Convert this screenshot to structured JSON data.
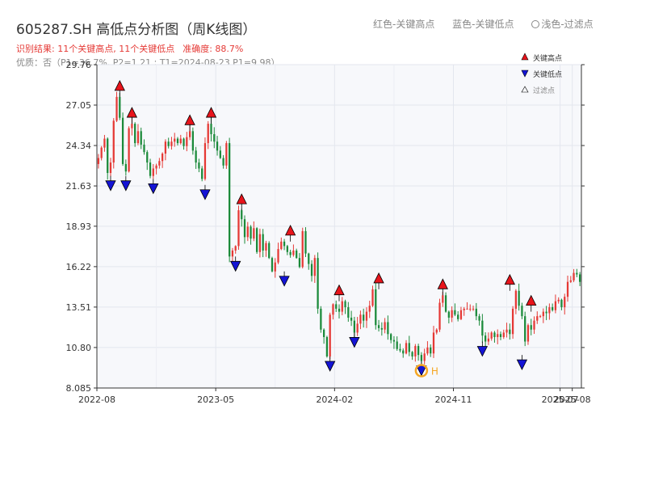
{
  "header": {
    "title": "605287.SH 高低点分析图（周K线图）",
    "legend_high": "红色-关键高点",
    "legend_low": "蓝色-关键低点",
    "legend_filtered": "浅色-过滤点",
    "summary": "识别结果: 11个关键高点, 11个关键低点",
    "accuracy": "准确度: 88.7%",
    "detail": "优质：否（P1=36.7%, P2=1.21 ; T1=2024-08-23 P1=9.98）"
  },
  "colors": {
    "up": "#e53935",
    "down": "#1b8a3a",
    "high_marker": "#e8141b",
    "low_marker": "#1414d6",
    "special": "#f5a623",
    "plot_bg": "#f7f8fb"
  },
  "chart_data": {
    "type": "candlestick",
    "x_ticks": [
      "2022-08",
      "2023-05",
      "2024-02",
      "2024-11",
      "2025-07",
      "2025-08"
    ],
    "x_tick_index": [
      0,
      39,
      78,
      117,
      152,
      156
    ],
    "y_ticks": [
      "8.085",
      "10.80",
      "13.51",
      "16.22",
      "18.93",
      "21.63",
      "24.34",
      "27.05",
      "29.76"
    ],
    "ylim": [
      8.085,
      29.76
    ],
    "legend": [
      "关键高点",
      "关键低点",
      "过滤点"
    ],
    "special_label": "H",
    "close": [
      23.5,
      24.2,
      24.8,
      22.5,
      23.2,
      26.0,
      27.6,
      26.2,
      23.1,
      22.6,
      25.5,
      25.8,
      24.5,
      25.3,
      24.4,
      23.9,
      23.2,
      22.3,
      22.8,
      23.0,
      23.3,
      23.8,
      24.6,
      24.3,
      24.6,
      24.8,
      24.5,
      24.8,
      24.3,
      24.9,
      25.3,
      24.0,
      23.2,
      22.8,
      22.1,
      24.5,
      25.8,
      25.1,
      24.6,
      24.0,
      23.5,
      23.0,
      24.5,
      16.9,
      17.3,
      17.6,
      20.0,
      19.4,
      18.2,
      18.9,
      18.1,
      18.8,
      17.2,
      18.4,
      17.3,
      17.8,
      16.8,
      15.9,
      16.5,
      17.4,
      17.9,
      17.6,
      17.2,
      17.0,
      17.3,
      16.8,
      16.2,
      18.6,
      17.1,
      16.4,
      15.6,
      16.8,
      13.4,
      12.0,
      11.5,
      10.2,
      13.0,
      13.7,
      13.4,
      13.2,
      13.9,
      13.5,
      12.8,
      12.6,
      11.8,
      12.4,
      13.0,
      12.6,
      13.2,
      13.6,
      14.7,
      12.3,
      12.1,
      12.0,
      12.5,
      11.7,
      11.3,
      11.2,
      10.7,
      10.6,
      10.4,
      11.1,
      10.5,
      10.2,
      10.9,
      10.3,
      9.9,
      10.4,
      10.8,
      10.4,
      11.8,
      12.0,
      13.8,
      14.3,
      13.2,
      12.8,
      13.3,
      13.0,
      12.7,
      13.3,
      13.4,
      13.4,
      13.4,
      13.4,
      12.9,
      12.6,
      11.6,
      11.2,
      11.4,
      11.8,
      11.5,
      11.7,
      11.5,
      11.8,
      12.0,
      11.7,
      13.4,
      14.6,
      13.6,
      12.9,
      11.2,
      12.3,
      12.0,
      12.6,
      12.9,
      12.9,
      13.2,
      13.1,
      13.5,
      13.3,
      13.9,
      14.0,
      13.5,
      14.2,
      15.2,
      15.3,
      15.8,
      15.7,
      15.2
    ],
    "points": [
      {
        "type": "high",
        "x": 7,
        "y": 27.6
      },
      {
        "type": "high",
        "x": 11,
        "y": 25.8
      },
      {
        "type": "high",
        "x": 30,
        "y": 25.3
      },
      {
        "type": "high",
        "x": 37,
        "y": 25.8
      },
      {
        "type": "high",
        "x": 47,
        "y": 20.0
      },
      {
        "type": "high",
        "x": 63,
        "y": 17.9
      },
      {
        "type": "high",
        "x": 79,
        "y": 13.9
      },
      {
        "type": "high",
        "x": 92,
        "y": 14.7
      },
      {
        "type": "high",
        "x": 113,
        "y": 14.3
      },
      {
        "type": "high",
        "x": 135,
        "y": 14.6
      },
      {
        "type": "high",
        "x": 142,
        "y": 13.2
      },
      {
        "type": "low",
        "x": 4,
        "y": 22.3
      },
      {
        "type": "low",
        "x": 9,
        "y": 22.3
      },
      {
        "type": "low",
        "x": 18,
        "y": 22.1
      },
      {
        "type": "low",
        "x": 35,
        "y": 21.7
      },
      {
        "type": "low",
        "x": 45,
        "y": 16.9
      },
      {
        "type": "low",
        "x": 61,
        "y": 15.9
      },
      {
        "type": "low",
        "x": 76,
        "y": 10.2
      },
      {
        "type": "low",
        "x": 84,
        "y": 11.8
      },
      {
        "type": "low",
        "x": 106,
        "y": 9.9
      },
      {
        "type": "low",
        "x": 126,
        "y": 11.2
      },
      {
        "type": "low",
        "x": 139,
        "y": 10.3
      }
    ]
  }
}
